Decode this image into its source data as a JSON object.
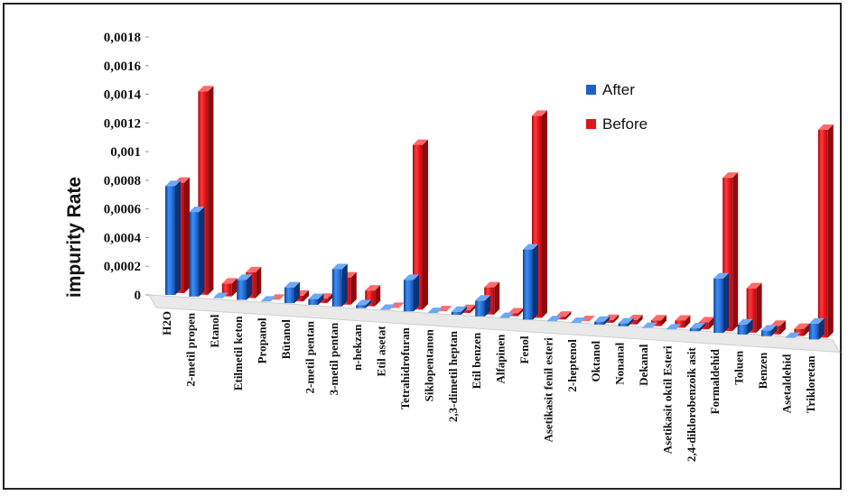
{
  "chart_data": {
    "type": "bar",
    "ylabel": "impurity Rate",
    "xlabel": "",
    "ylim": [
      0,
      0.0018
    ],
    "y_ticks": [
      "0",
      "0,0002",
      "0,0004",
      "0,0006",
      "0,0008",
      "0,001",
      "0,0012",
      "0,0014",
      "0,0016",
      "0,0018"
    ],
    "y_tick_values": [
      0,
      0.0002,
      0.0004,
      0.0006,
      0.0008,
      0.001,
      0.0012,
      0.0014,
      0.0016,
      0.0018
    ],
    "legend_position": "top-right",
    "grid": false,
    "categories": [
      "H2O",
      "2-metil propen",
      "Etanol",
      "Etilmetil keton",
      "Propanol",
      "Bütanol",
      "2-metil pentan",
      "3-metil pentan",
      "n-hekzan",
      "Etil asetat",
      "Tetrahidrofuran",
      "Siklopentanon",
      "2,3-dimetil heptan",
      "Etil benzen",
      "Alfapinen",
      "Fenol",
      "Asetikasit fenil esteri",
      "2-heptenol",
      "Oktanol",
      "Nonanal",
      "Dekanal",
      "Asetikasit oktil Esteri",
      "2,4-diklorobenzoik asit",
      "Formaldehid",
      "Toluen",
      "Benzen",
      "Asetaldehid",
      "Trikloretan"
    ],
    "series": [
      {
        "name": "After",
        "color": "#1f5fc8",
        "values": [
          0.00076,
          0.00059,
          0.0,
          0.00014,
          0.0,
          0.00011,
          4e-05,
          0.00026,
          2e-05,
          0.0,
          0.00022,
          0.0,
          2e-05,
          0.00011,
          0.0,
          0.00049,
          0.0,
          0.0,
          2e-05,
          2e-05,
          0.0,
          0.0,
          2e-05,
          0.00038,
          7e-05,
          4e-05,
          0.0,
          0.00011
        ]
      },
      {
        "name": "Before",
        "color": "#e2141c",
        "values": [
          0.00077,
          0.00142,
          9e-05,
          0.00018,
          0.0,
          4e-05,
          3e-05,
          0.00019,
          0.00011,
          0.0,
          0.00115,
          0.0,
          2e-05,
          0.00019,
          2e-05,
          0.00141,
          2e-05,
          0.0,
          2e-05,
          3e-05,
          4e-05,
          5e-05,
          5e-05,
          0.00107,
          0.00031,
          6e-05,
          5e-05,
          0.00145
        ]
      }
    ]
  }
}
